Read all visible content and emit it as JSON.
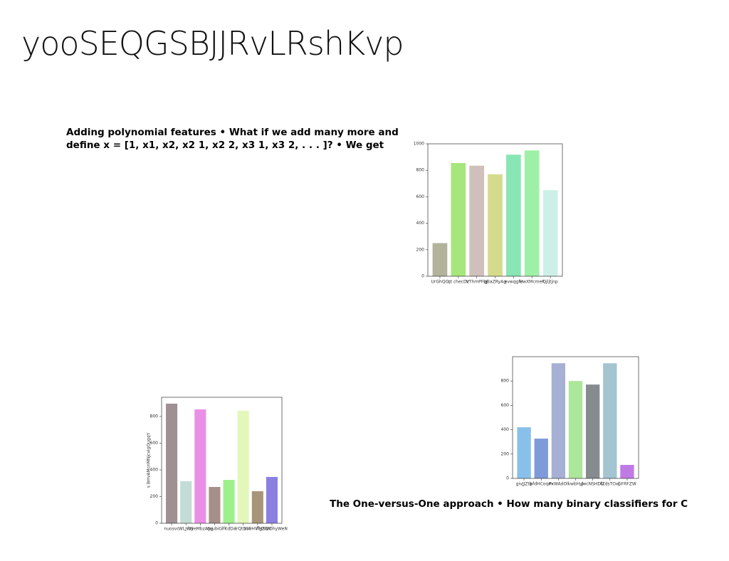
{
  "title": "yooSEQGSBJJRvLRshKvp",
  "texts": [
    "Adding polynomial features • What if we add many more and define x = [1, x1, x2, x2 1, x2 2, x3 1, x3 2, . . . ]? • We get",
    "The One-versus-One approach • How many binary classifiers for C"
  ],
  "chart_data": [
    {
      "type": "bar",
      "categories": [
        "UrGhQO",
        "qt checDz",
        "VThmPFbj",
        "gBaZRyAg",
        "evwqgfe",
        "UwXMcmeF",
        "Qjljtjnp"
      ],
      "values": [
        250,
        855,
        835,
        770,
        918,
        950,
        650
      ],
      "colors": [
        "#b3b39b",
        "#a6e67c",
        "#cfc0bc",
        "#d5db8c",
        "#88e6b4",
        "#9ef0a6",
        "#cdf0e6"
      ],
      "ylim": [
        0,
        1000
      ],
      "yticks": [
        0,
        200,
        400,
        600,
        800,
        1000
      ]
    },
    {
      "type": "bar",
      "ylabel": "s BrrvAMcnMNjcvigOugqY",
      "categories": [
        "nuosvc",
        "WLJvW",
        "fzyeMbzASg",
        "qvubiG",
        "lfKdDa",
        "lrQtDSF",
        "xvvHVfgZQV",
        "flHSWDhyWeN"
      ],
      "values": [
        896,
        315,
        853,
        272,
        325,
        843,
        240,
        347
      ],
      "colors": [
        "#a09094",
        "#c2dcd6",
        "#ea8fe6",
        "#a49088",
        "#9ef08c",
        "#e4f7bb",
        "#a89478",
        "#8b7fe0"
      ],
      "ylim": [
        0,
        944
      ],
      "yticks": [
        0,
        200,
        400,
        600,
        800
      ]
    },
    {
      "type": "bar",
      "categories": [
        "givJJZtb",
        "pfdHCoqm",
        "PxWAdOl",
        "kwbHyl",
        "JwcNSHDG",
        "fZdsTOxj",
        "GFRFZW"
      ],
      "values": [
        420,
        327,
        946,
        800,
        771,
        946,
        111
      ],
      "colors": [
        "#88c0ea",
        "#7f9ad8",
        "#a6b0d4",
        "#ace69a",
        "#858b8f",
        "#a4c4d0",
        "#c07ae6"
      ],
      "ylim": [
        0,
        1000
      ],
      "yticks": [
        0,
        200,
        400,
        600,
        800
      ]
    }
  ]
}
